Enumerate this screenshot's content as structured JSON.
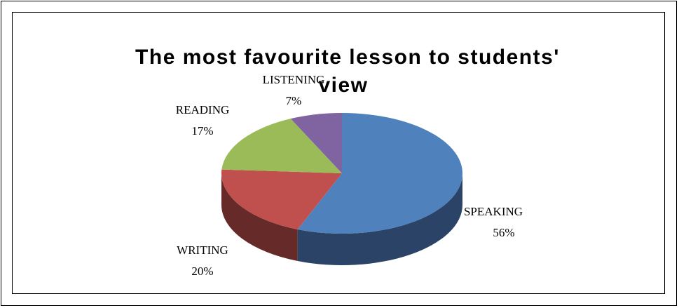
{
  "chart_data": {
    "type": "pie",
    "title_lines": [
      "The most favourite lesson to students'",
      "view"
    ],
    "slices": [
      {
        "name": "SPEAKING",
        "value": 56,
        "label": "56%",
        "color": "#4F81BD",
        "side_color": "#2B4366"
      },
      {
        "name": "WRITING",
        "value": 20,
        "label": "20%",
        "color": "#C0504D",
        "side_color": "#662A28"
      },
      {
        "name": "READING",
        "value": 17,
        "label": "17%",
        "color": "#9BBB59",
        "side_color": "#56692F"
      },
      {
        "name": "LISTENING",
        "value": 7,
        "label": "7%",
        "color": "#8064A2",
        "side_color": "#453658"
      }
    ],
    "legend": "none",
    "style": "3d"
  }
}
